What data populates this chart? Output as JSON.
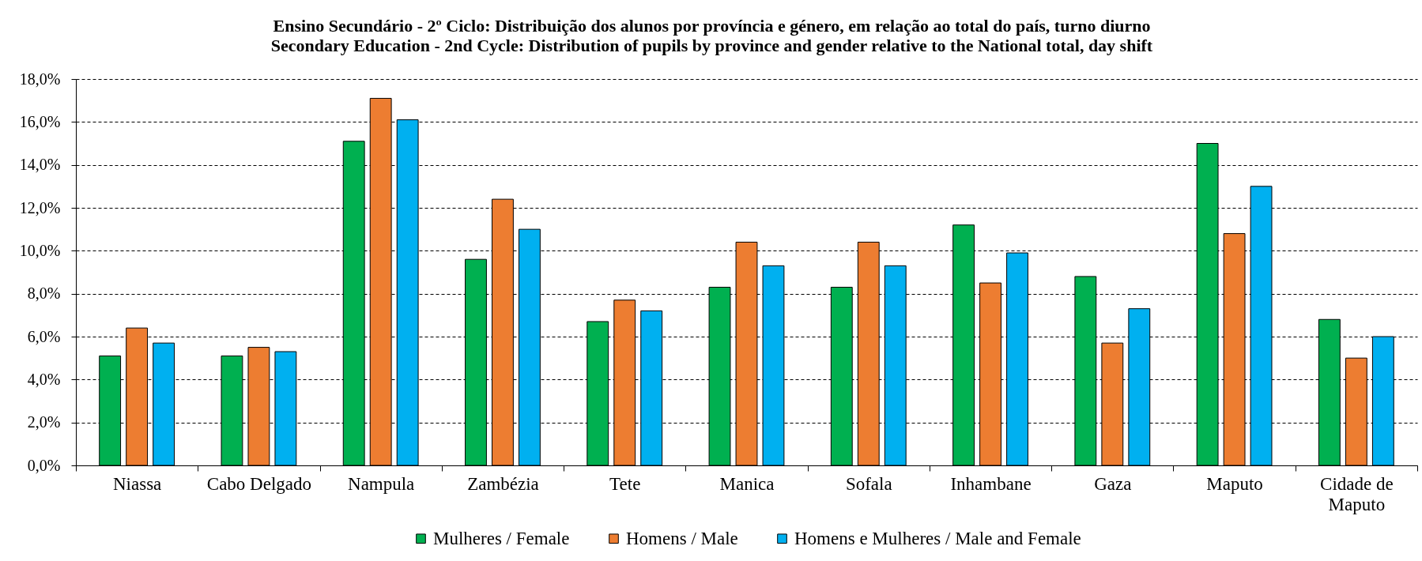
{
  "chart_data": {
    "type": "bar",
    "title": "Ensino Secundário - 2º Ciclo: Distribuição dos alunos por província e género, em relação ao total do país, turno diurno",
    "subtitle": "Secondary Education - 2nd Cycle: Distribution of pupils by province and gender relative to the National total, day shift",
    "categories": [
      "Niassa",
      "Cabo Delgado",
      "Nampula",
      "Zambézia",
      "Tete",
      "Manica",
      "Sofala",
      "Inhambane",
      "Gaza",
      "Maputo",
      "Cidade de Maputo"
    ],
    "series": [
      {
        "name": "Mulheres / Female",
        "color": "#00b050",
        "values": [
          5.1,
          5.1,
          15.1,
          9.6,
          6.7,
          8.3,
          8.3,
          11.2,
          8.8,
          15.0,
          6.8
        ]
      },
      {
        "name": "Homens / Male",
        "color": "#ed7d31",
        "values": [
          6.4,
          5.5,
          17.1,
          12.4,
          7.7,
          10.4,
          10.4,
          8.5,
          5.7,
          10.8,
          5.0
        ]
      },
      {
        "name": "Homens e Mulheres / Male and Female",
        "color": "#00b0f0",
        "values": [
          5.7,
          5.3,
          16.1,
          11.0,
          7.2,
          9.3,
          9.3,
          9.9,
          7.3,
          13.0,
          6.0
        ]
      }
    ],
    "ylim": [
      0,
      18
    ],
    "yticks": [
      {
        "value": 0,
        "label": "0,0%"
      },
      {
        "value": 2,
        "label": "2,0%"
      },
      {
        "value": 4,
        "label": "4,0%"
      },
      {
        "value": 6,
        "label": "6,0%"
      },
      {
        "value": 8,
        "label": "8,0%"
      },
      {
        "value": 10,
        "label": "10,0%"
      },
      {
        "value": 12,
        "label": "12,0%"
      },
      {
        "value": 14,
        "label": "14,0%"
      },
      {
        "value": 16,
        "label": "16,0%"
      },
      {
        "value": 18,
        "label": "18,0%"
      }
    ],
    "grid": "y",
    "legend": "bottom"
  }
}
